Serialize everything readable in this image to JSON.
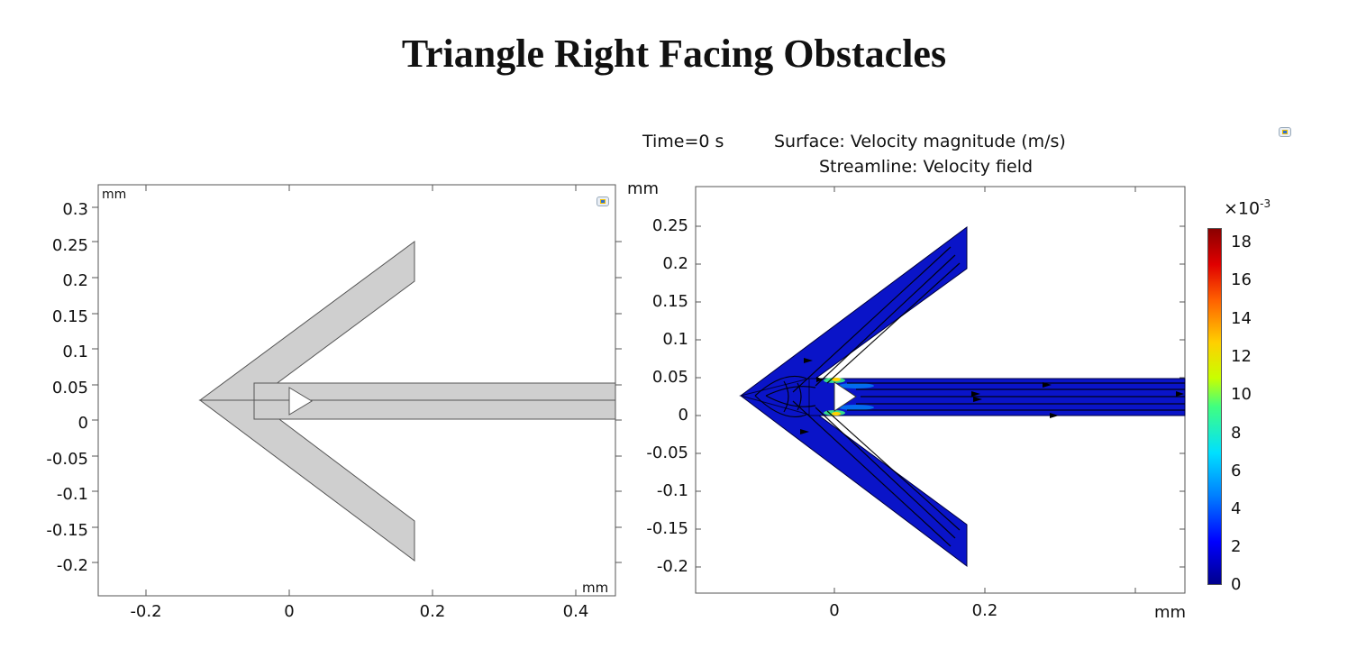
{
  "title": "Triangle Right Facing Obstacles",
  "left_plot": {
    "unit_x": "mm",
    "unit_y": "mm",
    "x_ticks": [
      "-0.2",
      "0",
      "0.2",
      "0.4"
    ],
    "y_ticks": [
      "0.3",
      "0.25",
      "0.2",
      "0.15",
      "0.1",
      "0.05",
      "0",
      "-0.05",
      "-0.1",
      "-0.15",
      "-0.2"
    ],
    "geometry_fill": "#cfcfcf"
  },
  "right_plot": {
    "header_time": "Time=0 s",
    "header_surface": "Surface: Velocity magnitude (m/s)",
    "header_streamline": "Streamline: Velocity field",
    "unit_x": "mm",
    "unit_y": "mm",
    "x_ticks": [
      "0",
      "0.2"
    ],
    "y_ticks": [
      "0.25",
      "0.2",
      "0.15",
      "0.1",
      "0.05",
      "0",
      "-0.05",
      "-0.1",
      "-0.15",
      "-0.2"
    ],
    "field_color": "#0a14c8",
    "colorbar": {
      "multiplier_base": "×10",
      "multiplier_exp": "-3",
      "ticks": [
        "18",
        "16",
        "14",
        "12",
        "10",
        "8",
        "6",
        "4",
        "2",
        "0"
      ]
    }
  }
}
